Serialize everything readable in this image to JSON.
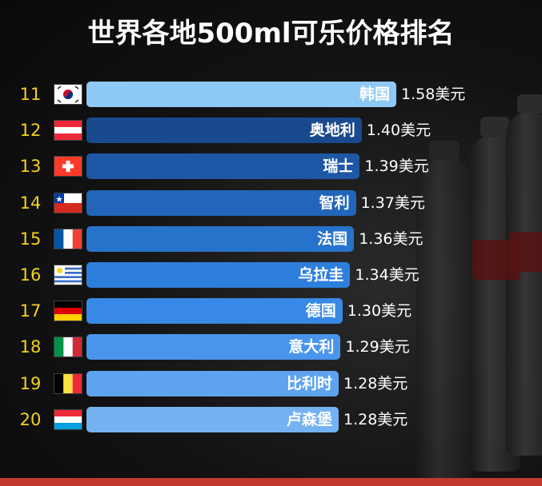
{
  "title": "世界各地500ml可乐价格排名",
  "chart_data": {
    "type": "bar",
    "orientation": "horizontal",
    "title": "世界各地500ml可乐价格排名",
    "unit": "美元",
    "xlim": [
      0,
      1.58
    ],
    "rows": [
      {
        "rank": "11",
        "country": "韩国",
        "value": 1.58,
        "value_label": "1.58美元",
        "flag_icon": "south-korea-flag-icon",
        "color": "#8ec8f4"
      },
      {
        "rank": "12",
        "country": "奥地利",
        "value": 1.4,
        "value_label": "1.40美元",
        "flag_icon": "austria-flag-icon",
        "color": "#1a4a8e"
      },
      {
        "rank": "13",
        "country": "瑞士",
        "value": 1.39,
        "value_label": "1.39美元",
        "flag_icon": "switzerland-flag-icon",
        "color": "#1d57a6"
      },
      {
        "rank": "14",
        "country": "智利",
        "value": 1.37,
        "value_label": "1.37美元",
        "flag_icon": "chile-flag-icon",
        "color": "#2166ba"
      },
      {
        "rank": "15",
        "country": "法国",
        "value": 1.36,
        "value_label": "1.36美元",
        "flag_icon": "france-flag-icon",
        "color": "#2773cc"
      },
      {
        "rank": "16",
        "country": "乌拉圭",
        "value": 1.34,
        "value_label": "1.34美元",
        "flag_icon": "uruguay-flag-icon",
        "color": "#2e7fdc"
      },
      {
        "rank": "17",
        "country": "德国",
        "value": 1.3,
        "value_label": "1.30美元",
        "flag_icon": "germany-flag-icon",
        "color": "#3889e6"
      },
      {
        "rank": "18",
        "country": "意大利",
        "value": 1.29,
        "value_label": "1.29美元",
        "flag_icon": "italy-flag-icon",
        "color": "#4a95ec"
      },
      {
        "rank": "19",
        "country": "比利时",
        "value": 1.28,
        "value_label": "1.28美元",
        "flag_icon": "belgium-flag-icon",
        "color": "#5ea3f0"
      },
      {
        "rank": "20",
        "country": "卢森堡",
        "value": 1.28,
        "value_label": "1.28美元",
        "flag_icon": "luxembourg-flag-icon",
        "color": "#74b2f2"
      }
    ]
  }
}
